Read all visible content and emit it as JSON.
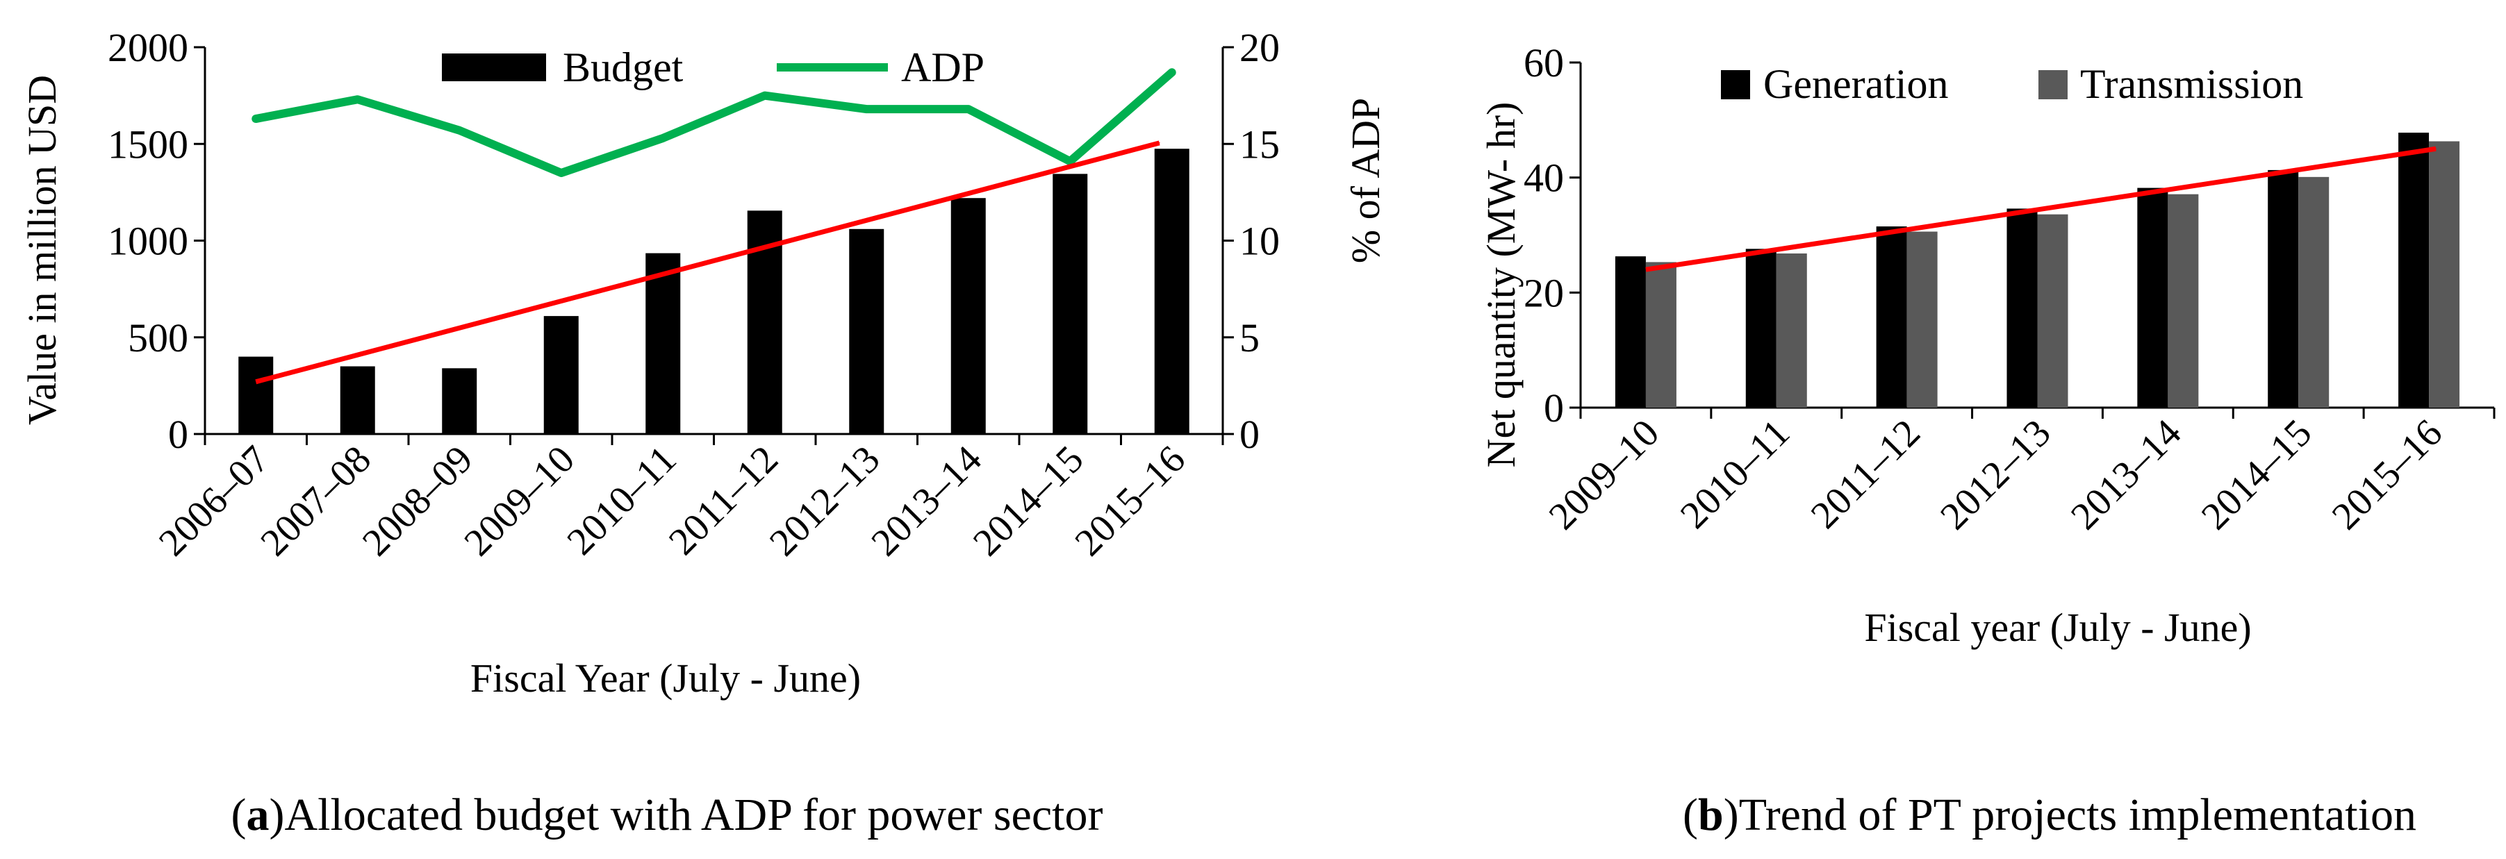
{
  "chart_data": [
    {
      "id": "a",
      "type": "bar+line",
      "caption_letter": "a",
      "caption_text": ")Allocated budget with ADP for power sector",
      "xlabel": "Fiscal Year (July - June)",
      "ylabel": "Value in million USD",
      "y2label": "% of ADP",
      "ylim": [
        0,
        2000
      ],
      "y2lim": [
        0,
        20
      ],
      "yticks": [
        "0",
        "500",
        "1000",
        "1500",
        "2000"
      ],
      "y2ticks": [
        "0",
        "5",
        "10",
        "15",
        "20"
      ],
      "categories": [
        "2006–07",
        "2007–08",
        "2008–09",
        "2009–10",
        "2010–11",
        "2011–12",
        "2012–13",
        "2013–14",
        "2014–15",
        "2015–16"
      ],
      "series": [
        {
          "name": "Budget",
          "kind": "bar",
          "axis": "left",
          "values": [
            400,
            350,
            340,
            610,
            935,
            1155,
            1060,
            1220,
            1345,
            1475
          ]
        },
        {
          "name": "ADP",
          "kind": "line",
          "axis": "right",
          "values": [
            16.3,
            17.3,
            15.7,
            13.5,
            15.3,
            17.5,
            16.8,
            16.8,
            14.1,
            18.7
          ]
        }
      ],
      "trend": {
        "from_index": 0,
        "from_value": 270,
        "to_index": 9,
        "to_value": 1505
      },
      "legend": [
        "Budget",
        "ADP"
      ],
      "colors": {
        "bar": "#000000",
        "line": "#00b050",
        "trend": "#ff0000"
      }
    },
    {
      "id": "b",
      "type": "bar",
      "caption_letter": "b",
      "caption_text": ")Trend of PT projects implementation",
      "xlabel": "Fiscal year (July - June)",
      "ylabel": "Net quantity (MW- hr)",
      "ylim": [
        0,
        60
      ],
      "yticks": [
        "0",
        "20",
        "40",
        "60"
      ],
      "categories": [
        "2009–10",
        "2010–11",
        "2011–12",
        "2012–13",
        "2013–14",
        "2014–15",
        "2015–16"
      ],
      "series": [
        {
          "name": "Generation",
          "values": [
            26.3,
            27.6,
            31.5,
            34.6,
            38.2,
            41.3,
            47.8
          ]
        },
        {
          "name": "Transmission",
          "values": [
            25.3,
            26.8,
            30.6,
            33.6,
            37.1,
            40.1,
            46.3
          ]
        }
      ],
      "trend": {
        "from_index": 0,
        "from_value": 24,
        "to_index": 6,
        "to_value": 45
      },
      "legend": [
        "Generation",
        "Transmission"
      ],
      "colors": {
        "generation": "#000000",
        "transmission": "#595959",
        "trend": "#ff0000"
      }
    }
  ]
}
